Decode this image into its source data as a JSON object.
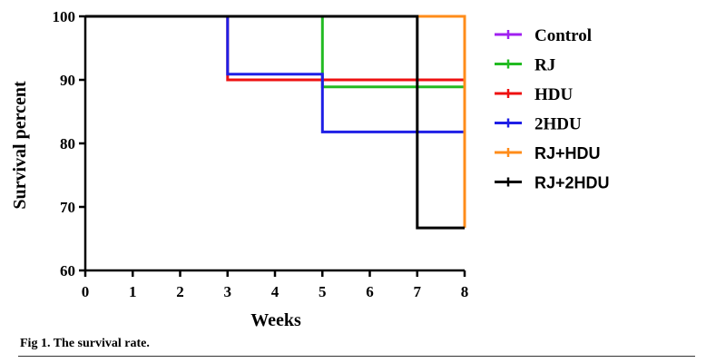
{
  "chart_data": {
    "type": "line",
    "step": true,
    "xlabel": "Weeks",
    "ylabel": "Survival percent",
    "xlim": [
      0,
      8
    ],
    "ylim": [
      60,
      100
    ],
    "x_ticks": [
      0,
      1,
      2,
      3,
      4,
      5,
      6,
      7,
      8
    ],
    "y_ticks": [
      60,
      70,
      80,
      90,
      100
    ],
    "grid": false,
    "legend_position": "right",
    "series": [
      {
        "name": "Control",
        "color": "#a020f0",
        "steps": [
          [
            0,
            100
          ],
          [
            8,
            100
          ]
        ]
      },
      {
        "name": "RJ",
        "color": "#22bb22",
        "steps": [
          [
            0,
            100
          ],
          [
            5,
            88.9
          ],
          [
            8,
            88.9
          ]
        ]
      },
      {
        "name": "HDU",
        "color": "#ee1111",
        "steps": [
          [
            0,
            100
          ],
          [
            3,
            90
          ],
          [
            8,
            90
          ],
          [
            8,
            81.8
          ]
        ]
      },
      {
        "name": "2HDU",
        "color": "#1f1fe6",
        "steps": [
          [
            0,
            100
          ],
          [
            3,
            90.9
          ],
          [
            5,
            81.8
          ],
          [
            8,
            81.8
          ],
          [
            8,
            72.7
          ]
        ]
      },
      {
        "name": "RJ+HDU",
        "color": "#ff8c1a",
        "steps": [
          [
            0,
            100
          ],
          [
            8,
            100
          ],
          [
            8,
            66.7
          ]
        ]
      },
      {
        "name": "RJ+2HDU",
        "color": "#000000",
        "steps": [
          [
            0,
            100
          ],
          [
            7,
            100
          ],
          [
            7,
            66.7
          ],
          [
            8,
            66.7
          ]
        ]
      }
    ]
  },
  "caption": "Fig 1. The survival rate."
}
